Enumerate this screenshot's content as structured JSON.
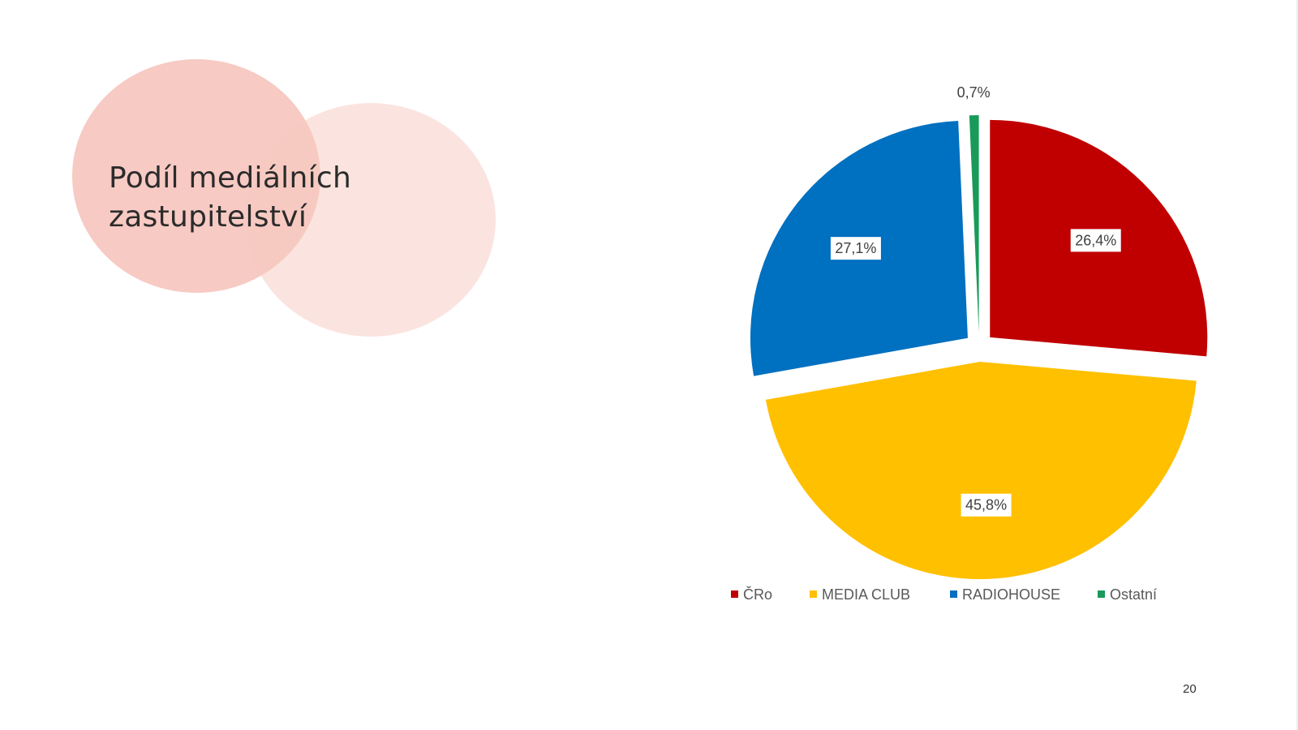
{
  "slide": {
    "title_line1": "Podíl mediálních",
    "title_line2": "zastupitelství",
    "page_number": "20"
  },
  "chart_data": {
    "type": "pie",
    "title": "",
    "categories": [
      "ČRo",
      "MEDIA CLUB",
      "RADIOHOUSE",
      "Ostatní"
    ],
    "values": [
      26.4,
      45.8,
      27.1,
      0.7
    ],
    "value_labels": [
      "26,4%",
      "45,8%",
      "27,1%",
      "0,7%"
    ],
    "colors": [
      "#c00000",
      "#ffc000",
      "#0070c0",
      "#1a9a5a"
    ],
    "legend_position": "bottom",
    "exploded": true,
    "start_angle": "12 o'clock, clockwise"
  }
}
